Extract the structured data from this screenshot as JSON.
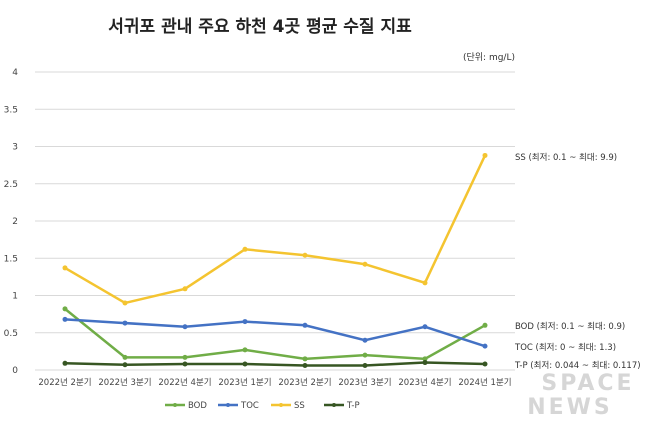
{
  "chart_data": {
    "type": "line",
    "title": "서귀포 관내 주요 하천 4곳 평균 수질 지표",
    "unit_note": "(단위: mg/L)",
    "categories": [
      "2022년 2분기",
      "2022년 3분기",
      "2022년 4분기",
      "2023년 1분기",
      "2023년 2분기",
      "2023년 3분기",
      "2023년 4분기",
      "2024년 1분기"
    ],
    "ylim": [
      0,
      4
    ],
    "yticks": [
      "0",
      "0.5",
      "1",
      "1.5",
      "2",
      "2.5",
      "3",
      "3.5",
      "4"
    ],
    "grid": true,
    "legend_placement": "bottom",
    "series": [
      {
        "name": "BOD",
        "color": "#70ad47",
        "values": [
          0.82,
          0.17,
          0.17,
          0.27,
          0.15,
          0.2,
          0.15,
          0.6
        ],
        "annotation": "BOD (최저: 0.1 ~ 최대: 0.9)"
      },
      {
        "name": "TOC",
        "color": "#4472c4",
        "values": [
          0.68,
          0.63,
          0.58,
          0.65,
          0.6,
          0.4,
          0.58,
          0.32
        ],
        "annotation": "TOC (최저: 0 ~ 최대: 1.3)"
      },
      {
        "name": "SS",
        "color": "#f4c430",
        "values": [
          1.37,
          0.9,
          1.09,
          1.62,
          1.54,
          1.42,
          1.17,
          2.88
        ],
        "annotation": "SS (최저: 0.1 ~ 최대: 9.9)"
      },
      {
        "name": "T-P",
        "color": "#375623",
        "values": [
          0.09,
          0.07,
          0.08,
          0.08,
          0.06,
          0.06,
          0.1,
          0.08
        ],
        "annotation": "T-P (최저: 0.044 ~ 최대: 0.117)"
      }
    ]
  },
  "watermark": "SPACE NEWS"
}
